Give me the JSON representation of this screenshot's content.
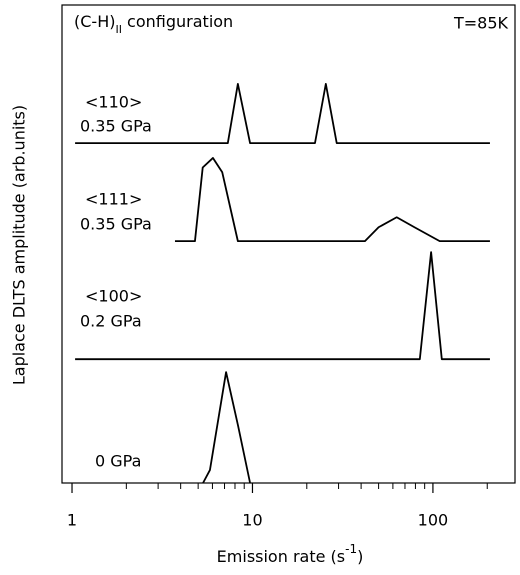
{
  "chart_data": {
    "type": "line",
    "title_parts": [
      "(C-H)",
      "II",
      " configuration"
    ],
    "annotation": "T=85K",
    "y_label": "Laplace DLTS amplitude (arb.units)",
    "x_label_parts": [
      "Emission rate (s",
      "-1",
      ")"
    ],
    "x_scale": "log",
    "xlim": [
      0.88,
      285
    ],
    "xticks": [
      1,
      10,
      100
    ],
    "minor_xticks": [
      2,
      3,
      4,
      5,
      6,
      7,
      8,
      9,
      20,
      30,
      40,
      50,
      60,
      70,
      80,
      90,
      200
    ],
    "ylim": [
      0,
      10
    ],
    "color": "#000000",
    "series": [
      {
        "name": "<110>",
        "pressure": "0.35 GPa",
        "x": [
          1.04,
          7.3,
          8.3,
          9.7,
          22.2,
          25.5,
          29.3,
          207
        ],
        "values": [
          7.11,
          7.11,
          8.35,
          7.11,
          7.11,
          8.35,
          7.11,
          7.11
        ]
      },
      {
        "name": "<111>",
        "pressure": "0.35 GPa",
        "x": [
          3.72,
          4.8,
          5.3,
          6.04,
          6.8,
          8.3,
          42,
          50,
          63,
          79,
          109,
          207
        ],
        "values": [
          5.06,
          5.06,
          6.6,
          6.8,
          6.5,
          5.06,
          5.06,
          5.35,
          5.56,
          5.35,
          5.06,
          5.06
        ]
      },
      {
        "name": "<100>",
        "pressure": "0.2 GPa",
        "x": [
          1.04,
          84.6,
          97.7,
          112,
          207
        ],
        "values": [
          2.59,
          2.59,
          4.83,
          2.59,
          2.59
        ]
      },
      {
        "pressure": "0 GPa",
        "x": [
          5.32,
          5.81,
          7.14,
          8.32,
          9.7
        ],
        "values": [
          0,
          0.27,
          2.32,
          1.2,
          0
        ]
      }
    ]
  }
}
